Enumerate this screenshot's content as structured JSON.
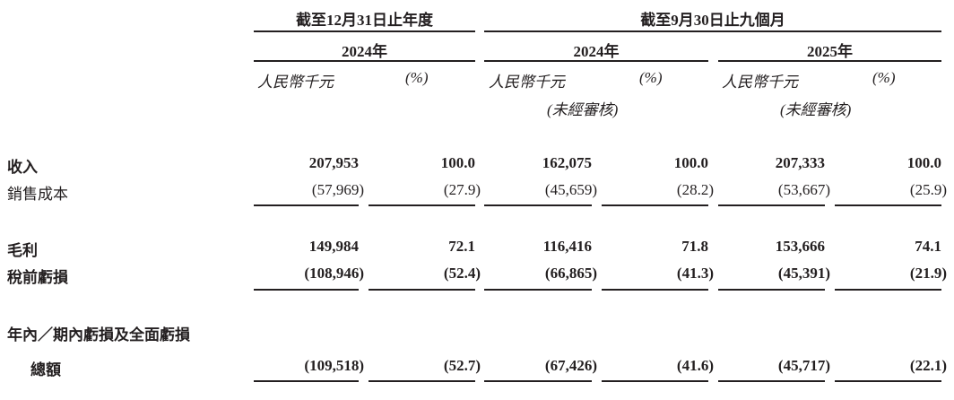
{
  "header": {
    "group1": "截至12月31日止年度",
    "group2": "截至9月30日止九個月",
    "years": [
      "2024年",
      "2024年",
      "2025年"
    ],
    "unit_rmb": "人民幣千元",
    "unit_pct": "(%)",
    "unaudited": "(未經審核)"
  },
  "rows": [
    {
      "label": "收入",
      "bold": true,
      "values": [
        "207,953",
        "100.0",
        "162,075",
        "100.0",
        "207,333",
        "100.0"
      ]
    },
    {
      "label": "銷售成本",
      "bold": false,
      "values": [
        "(57,969)",
        "(27.9)",
        "(45,659)",
        "(28.2)",
        "(53,667)",
        "(25.9)"
      ]
    },
    {
      "label": "毛利",
      "bold": true,
      "values": [
        "149,984",
        "72.1",
        "116,416",
        "71.8",
        "153,666",
        "74.1"
      ]
    },
    {
      "label": "稅前虧損",
      "bold": true,
      "values": [
        "(108,946)",
        "(52.4)",
        "(66,865)",
        "(41.3)",
        "(45,391)",
        "(21.9)"
      ]
    },
    {
      "label": "年內／期內虧損及全面虧損",
      "label2": "總額",
      "bold": true,
      "values": [
        "(109,518)",
        "(52.7)",
        "(67,426)",
        "(41.6)",
        "(45,717)",
        "(22.1)"
      ]
    }
  ]
}
